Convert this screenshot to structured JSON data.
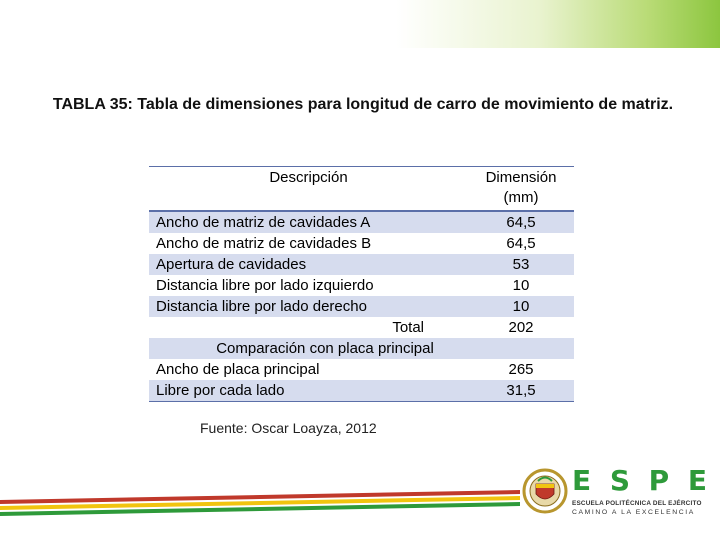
{
  "slide": {
    "title": "TABLA 35: Tabla de dimensiones para longitud de carro de movimiento de matriz.",
    "source": "Fuente: Oscar Loayza, 2012"
  },
  "table": {
    "headers": {
      "description": "Descripción",
      "dimension_line1": "Dimensión",
      "dimension_line2": "(mm)"
    },
    "rows": [
      {
        "label": "Ancho de matriz de cavidades A",
        "value": "64,5"
      },
      {
        "label": "Ancho de matriz de cavidades B",
        "value": "64,5"
      },
      {
        "label": "Apertura de cavidades",
        "value": "53"
      },
      {
        "label": "Distancia libre por lado izquierdo",
        "value": "10"
      },
      {
        "label": "Distancia libre por lado derecho",
        "value": "10"
      }
    ],
    "total": {
      "label": "Total",
      "value": "202"
    },
    "comparison": {
      "heading": "Comparación con placa principal",
      "rows": [
        {
          "label": "Ancho de placa principal",
          "value": "265"
        },
        {
          "label": "Libre por cada lado",
          "value": "31,5"
        }
      ]
    }
  },
  "logo": {
    "letters": [
      "E",
      "S",
      "P",
      "E"
    ],
    "line1": "ESCUELA POLITÉCNICA DEL EJÉRCITO",
    "line2": "CAMINO A LA EXCELENCIA"
  },
  "colors": {
    "accent_green": "#8cc63f",
    "stripe_red": "#c0392b",
    "stripe_yellow": "#f1c40f",
    "table_shade": "#d6dcee",
    "table_rule": "#5b6fa8"
  }
}
